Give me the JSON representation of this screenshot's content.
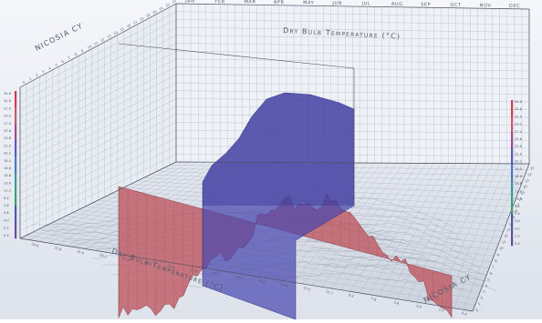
{
  "chart_data": {
    "type": "area",
    "title": "Dry Bulb Temperature (°C)",
    "location": "NICOSIA CY",
    "location_label_right": "NICOSIA CY",
    "bottom_axis_label": "Dry Bulb Temperature (°C)",
    "months": [
      "JAN",
      "FEB",
      "MAR",
      "APR",
      "MAY",
      "JUN",
      "JUL",
      "AUG",
      "SEP",
      "OCT",
      "NOV",
      "DEC"
    ],
    "hour_ticks": [
      "0",
      "1",
      "2",
      "3",
      "4",
      "5",
      "6",
      "7",
      "8",
      "9",
      "10",
      "11",
      "12",
      "13",
      "14",
      "15",
      "16",
      "17",
      "18",
      "19",
      "20",
      "21",
      "22",
      "23"
    ],
    "scale_ticks": [
      "34.6",
      "32.8",
      "31.0",
      "29.2",
      "27.4",
      "25.6",
      "23.8",
      "22.0",
      "20.2",
      "18.4",
      "16.6",
      "14.8",
      "13.0",
      "11.2",
      "9.4",
      "7.6",
      "5.8",
      "4.0",
      "2.2",
      "0.4"
    ],
    "ylim": [
      0.4,
      34.6
    ],
    "series": [
      {
        "name": "Monthly profile",
        "values": [
          10.5,
          11.8,
          14.6,
          20.4,
          26.2,
          31.4,
          34.3,
          33.9,
          29.8,
          23.9,
          17.1,
          12.4
        ]
      }
    ],
    "colors": {
      "background": "#eef1f7",
      "grid": "#9aa4b5",
      "month_plane": "#c05a64",
      "hour_plane": "#4a48b0"
    },
    "grid": true
  }
}
